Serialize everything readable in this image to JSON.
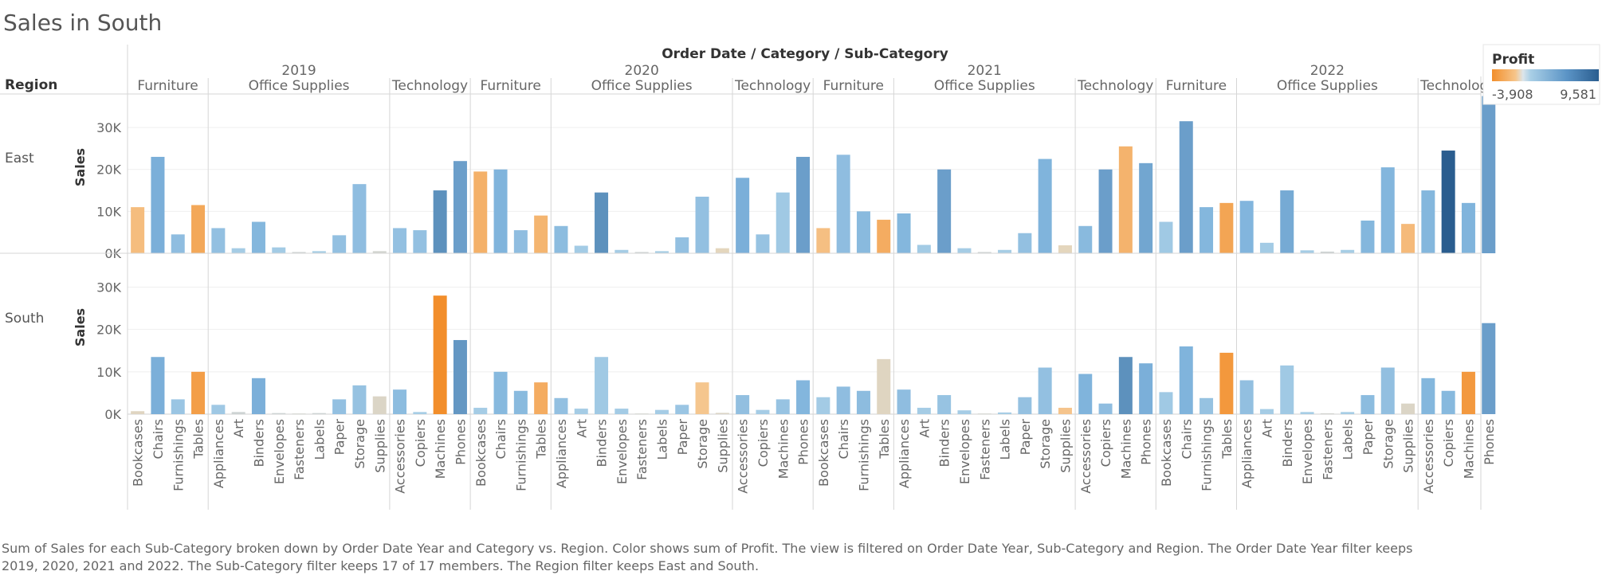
{
  "title": "Sales in South",
  "header_title": "Order Date / Category / Sub-Category",
  "row_header": "Region",
  "measure_label": "Sales",
  "legend": {
    "title": "Profit",
    "min_label": "-3,908",
    "max_label": "9,581",
    "min": -3908,
    "max": 9581
  },
  "caption": "Sum of Sales for each Sub-Category broken down by Order Date Year and Category vs. Region.  Color shows sum of Profit. The view is filtered on Order Date Year, Sub-Category and Region. The Order Date Year filter keeps 2019, 2020, 2021 and 2022. The Sub-Category filter keeps 17 of 17 members. The Region filter keeps East and South.",
  "chart_data": {
    "type": "bar",
    "years": [
      "2019",
      "2020",
      "2021",
      "2022"
    ],
    "categories": [
      {
        "name": "Furniture",
        "subcategories": [
          "Bookcases",
          "Chairs",
          "Furnishings",
          "Tables"
        ]
      },
      {
        "name": "Office Supplies",
        "subcategories": [
          "Appliances",
          "Art",
          "Binders",
          "Envelopes",
          "Fasteners",
          "Labels",
          "Paper",
          "Storage",
          "Supplies"
        ]
      },
      {
        "name": "Technology",
        "subcategories": [
          "Accessories",
          "Copiers",
          "Machines",
          "Phones"
        ]
      }
    ],
    "rows": [
      "East",
      "South"
    ],
    "y_ticks": [
      0,
      10000,
      20000,
      30000
    ],
    "y_tick_labels": [
      "0K",
      "10K",
      "20K",
      "30K"
    ],
    "ylim": [
      0,
      38000
    ],
    "color": {
      "negative": "#f28e2b",
      "neutral": "#d4cdb3",
      "light_positive": "#a6cce3",
      "positive": "#2a5d8f"
    },
    "sales": {
      "East": {
        "2019": [
          11000,
          23000,
          4500,
          11500,
          6000,
          1200,
          7500,
          1400,
          300,
          500,
          4300,
          16500,
          500,
          6000,
          5500,
          15000,
          22000
        ],
        "2020": [
          19500,
          20000,
          5500,
          9000,
          6500,
          1800,
          14500,
          800,
          300,
          500,
          3800,
          13500,
          1200,
          18000,
          4500,
          14500,
          23000
        ],
        "2021": [
          6000,
          23500,
          10000,
          8000,
          9500,
          2000,
          20000,
          1200,
          300,
          800,
          4800,
          22500,
          1900,
          6500,
          20000,
          25500,
          21500
        ],
        "2022": [
          7500,
          31500,
          11000,
          12000,
          12500,
          2500,
          15000,
          700,
          400,
          800,
          7800,
          20500,
          7000,
          15000,
          24500,
          12000,
          37500
        ]
      },
      "South": {
        "2019": [
          700,
          13500,
          3500,
          10000,
          2200,
          500,
          8500,
          250,
          150,
          250,
          3500,
          6800,
          4200,
          5800,
          500,
          28000,
          17500
        ],
        "2020": [
          1500,
          10000,
          5500,
          7500,
          3800,
          1300,
          13500,
          1300,
          150,
          1000,
          2200,
          7500,
          300,
          4500,
          1000,
          3500,
          8000
        ],
        "2021": [
          4000,
          6500,
          5500,
          13000,
          5800,
          1500,
          4500,
          900,
          150,
          400,
          4000,
          11000,
          1500,
          9500,
          2500,
          13500,
          12000
        ],
        "2022": [
          5200,
          16000,
          3800,
          14500,
          8000,
          1200,
          11500,
          500,
          200,
          500,
          4500,
          11000,
          2500,
          8500,
          5500,
          10000,
          21500
        ]
      }
    },
    "profit": {
      "East": {
        "2019": [
          -600,
          3000,
          1800,
          -1800,
          1500,
          300,
          2500,
          400,
          100,
          200,
          1500,
          1800,
          50,
          1500,
          1500,
          5000,
          4000
        ],
        "2020": [
          -1200,
          2800,
          1800,
          -1000,
          2000,
          400,
          5000,
          300,
          100,
          200,
          1500,
          1500,
          -150,
          3000,
          1200,
          600,
          4000
        ],
        "2021": [
          -500,
          1800,
          2200,
          -1500,
          2500,
          400,
          4000,
          300,
          100,
          200,
          1500,
          2800,
          -150,
          2200,
          4000,
          -1100,
          3500
        ],
        "2022": [
          600,
          4000,
          2500,
          -2000,
          2700,
          400,
          3300,
          300,
          100,
          200,
          2500,
          2600,
          -700,
          2500,
          9581,
          2800,
          4000
        ]
      },
      "South": {
        "2019": [
          -100,
          3000,
          1000,
          -2500,
          700,
          100,
          3000,
          100,
          50,
          100,
          1500,
          1300,
          -50,
          2000,
          200,
          -3908,
          4500
        ],
        "2020": [
          300,
          2300,
          2200,
          -1500,
          1500,
          300,
          600,
          400,
          50,
          300,
          1000,
          -250,
          -50,
          1600,
          300,
          1200,
          2600
        ],
        "2021": [
          400,
          1800,
          1900,
          -100,
          1800,
          300,
          1200,
          300,
          50,
          200,
          1400,
          1500,
          -300,
          2800,
          1800,
          5000,
          3000
        ],
        "2022": [
          600,
          2800,
          1300,
          -3000,
          1600,
          300,
          600,
          200,
          50,
          200,
          2000,
          1600,
          -50,
          2500,
          2300,
          -2900,
          4000
        ]
      }
    }
  }
}
